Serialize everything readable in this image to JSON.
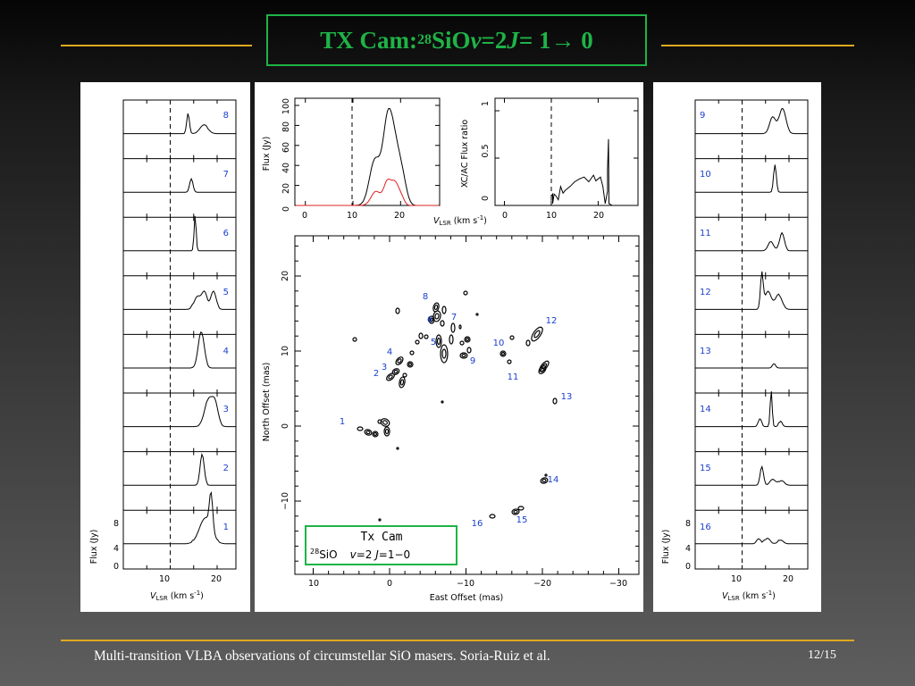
{
  "slide": {
    "title": {
      "prefix": "TX Cam: ",
      "iso": "28",
      "species": "SiO ",
      "v": "v",
      "veq": " =2 ",
      "j": "J",
      "trans": " = 1→ 0"
    },
    "footer": "Multi-transition VLBA observations of circumstellar SiO masers.     Soria-Ruiz et al.",
    "page": "12/15",
    "colors": {
      "title": "#1fb347",
      "rule": "#e0a820",
      "labels": "#1a3fd0",
      "red_spectrum": "#e02020"
    }
  },
  "left_spectra": {
    "ids": [
      "8",
      "7",
      "6",
      "5",
      "4",
      "3",
      "2",
      "1"
    ],
    "ylabel": "Flux (Jy)",
    "yticks": [
      "0",
      "4",
      "8"
    ],
    "xticks": [
      "10",
      "20"
    ],
    "xlabel_v": "V",
    "xlabel_sub": "LSR",
    "xlabel_units": " (km s",
    "xlabel_exp": "-1",
    "xlabel_close": ")"
  },
  "right_spectra": {
    "ids": [
      "9",
      "10",
      "11",
      "12",
      "13",
      "14",
      "15",
      "16"
    ],
    "ylabel": "Flux (Jy)",
    "yticks": [
      "0",
      "4",
      "8"
    ],
    "xticks": [
      "10",
      "20"
    ],
    "xlabel_v": "V",
    "xlabel_sub": "LSR",
    "xlabel_units": " (km s",
    "xlabel_exp": "-1",
    "xlabel_close": ")"
  },
  "total_flux": {
    "ylabel": "Flux (Jy)",
    "yticks": [
      "0",
      "20",
      "40",
      "60",
      "80",
      "100"
    ],
    "xticks": [
      "0",
      "10",
      "20"
    ],
    "xlabel_v": "V",
    "xlabel_sub": "LSR",
    "xlabel_units": " (km s",
    "xlabel_exp": "-1",
    "xlabel_close": ")"
  },
  "flux_ratio": {
    "ylabel": "XC/AC Flux ratio",
    "yticks": [
      "0",
      "0.5",
      "1"
    ],
    "xticks": [
      "0",
      "10",
      "20"
    ]
  },
  "map": {
    "ylabel": "North Offset (mas)",
    "xlabel": "East Offset (mas)",
    "xticks": [
      "10",
      "0",
      "−10",
      "−20",
      "−30"
    ],
    "yticks": [
      "20",
      "10",
      "0",
      "−10"
    ],
    "legend_title": "Tx Cam",
    "legend_iso": "28",
    "legend_species": "SiO",
    "legend_v": "v",
    "legend_veq": "=2 ",
    "legend_j": "J",
    "legend_trans": "=1−0",
    "spot_labels": [
      "1",
      "2",
      "3",
      "4",
      "5",
      "6",
      "7",
      "8",
      "9",
      "10",
      "11",
      "12",
      "13",
      "14",
      "15",
      "16"
    ]
  }
}
